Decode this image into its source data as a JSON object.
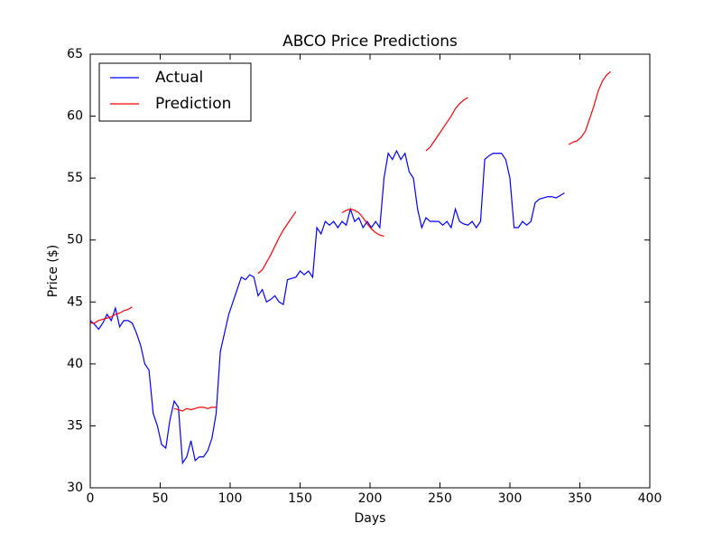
{
  "chart_data": {
    "type": "line",
    "title": "ABCO Price Predictions",
    "x_label": "Days",
    "y_label": "Price ($)",
    "x": [
      0,
      3,
      6,
      9,
      12,
      15,
      18,
      21,
      24,
      27,
      30,
      33,
      36,
      39,
      42,
      45,
      48,
      51,
      54,
      57,
      60,
      63,
      66,
      69,
      72,
      75,
      78,
      81,
      84,
      87,
      90,
      93,
      96,
      99,
      102,
      105,
      108,
      111,
      114,
      117,
      120,
      123,
      126,
      129,
      132,
      135,
      138,
      141,
      144,
      147,
      150,
      153,
      156,
      159,
      162,
      165,
      168,
      171,
      174,
      177,
      180,
      183,
      186,
      189,
      192,
      195,
      198,
      201,
      204,
      207,
      210,
      213,
      216,
      219,
      222,
      225,
      228,
      231,
      234,
      237,
      240,
      243,
      246,
      249,
      252,
      255,
      258,
      261,
      264,
      267,
      270,
      273,
      276,
      279,
      282,
      285,
      288,
      291,
      294,
      297,
      300,
      303,
      306,
      309,
      312,
      315,
      318,
      321,
      324,
      327,
      330,
      333,
      336,
      339,
      342,
      345,
      348,
      351,
      354,
      357,
      360,
      363,
      366,
      369,
      372
    ],
    "series": [
      {
        "name": "Actual",
        "color": "#0000ff",
        "values": [
          43.5,
          43.2,
          42.8,
          43.3,
          44.0,
          43.5,
          44.5,
          43.0,
          43.5,
          43.5,
          43.3,
          42.5,
          41.5,
          40.0,
          39.5,
          36.0,
          35.0,
          33.5,
          33.2,
          35.5,
          37.0,
          36.5,
          32.0,
          32.5,
          33.8,
          32.2,
          32.5,
          32.5,
          33.0,
          34.0,
          36.0,
          41.0,
          42.5,
          44.0,
          45.0,
          46.0,
          47.0,
          46.8,
          47.2,
          47.0,
          45.5,
          46.0,
          45.0,
          45.2,
          45.5,
          45.0,
          44.8,
          46.8,
          46.9,
          47.0,
          47.5,
          47.2,
          47.5,
          47.0,
          51.0,
          50.5,
          51.5,
          51.2,
          51.5,
          51.0,
          51.5,
          51.2,
          52.5,
          51.5,
          51.8,
          51.0,
          51.5,
          51.0,
          51.5,
          51.0,
          55.0,
          57.0,
          56.5,
          57.2,
          56.5,
          57.0,
          55.5,
          55.0,
          52.5,
          51.0,
          51.8,
          51.5,
          51.5,
          51.5,
          51.2,
          51.5,
          51.0,
          52.5,
          51.5,
          51.3,
          51.2,
          51.5,
          51.0,
          51.5,
          56.5,
          56.8,
          57.0,
          57.0,
          57.0,
          56.5,
          55.0,
          51.0,
          51.0,
          51.5,
          51.2,
          51.5,
          53.0,
          53.3,
          53.4,
          53.5,
          53.5,
          53.4,
          53.6,
          53.8,
          null,
          null,
          null,
          null,
          null,
          null,
          null,
          null,
          null,
          null,
          null
        ]
      },
      {
        "name": "Prediction",
        "color": "#ff0000",
        "values": [
          43.3,
          43.3,
          43.5,
          43.6,
          43.7,
          43.8,
          44.0,
          44.1,
          44.3,
          44.4,
          44.6,
          null,
          null,
          null,
          null,
          null,
          null,
          null,
          null,
          null,
          36.4,
          36.3,
          36.2,
          36.4,
          36.3,
          36.4,
          36.5,
          36.5,
          36.4,
          36.5,
          36.5,
          null,
          null,
          null,
          null,
          null,
          null,
          null,
          null,
          null,
          47.3,
          47.6,
          48.2,
          48.8,
          49.5,
          50.2,
          50.8,
          51.3,
          51.8,
          52.3,
          null,
          null,
          null,
          null,
          null,
          null,
          null,
          null,
          null,
          null,
          52.2,
          52.4,
          52.5,
          52.4,
          52.2,
          51.8,
          51.3,
          50.9,
          50.6,
          50.4,
          50.3,
          null,
          null,
          null,
          null,
          null,
          null,
          null,
          null,
          null,
          57.2,
          57.5,
          58.0,
          58.5,
          59.0,
          59.5,
          60.0,
          60.6,
          61.0,
          61.3,
          61.5,
          null,
          null,
          null,
          null,
          null,
          null,
          null,
          null,
          null,
          null,
          null,
          null,
          null,
          null,
          null,
          null,
          null,
          null,
          null,
          null,
          null,
          null,
          null,
          57.7,
          57.9,
          58.0,
          58.3,
          58.8,
          59.8,
          60.8,
          62.0,
          62.8,
          63.3,
          63.6
        ]
      }
    ],
    "xlim": [
      0,
      400
    ],
    "ylim": [
      30,
      65
    ],
    "xticks": [
      0,
      50,
      100,
      150,
      200,
      250,
      300,
      350,
      400
    ],
    "yticks": [
      30,
      35,
      40,
      45,
      50,
      55,
      60,
      65
    ],
    "legend": "upper left",
    "grid": false
  }
}
